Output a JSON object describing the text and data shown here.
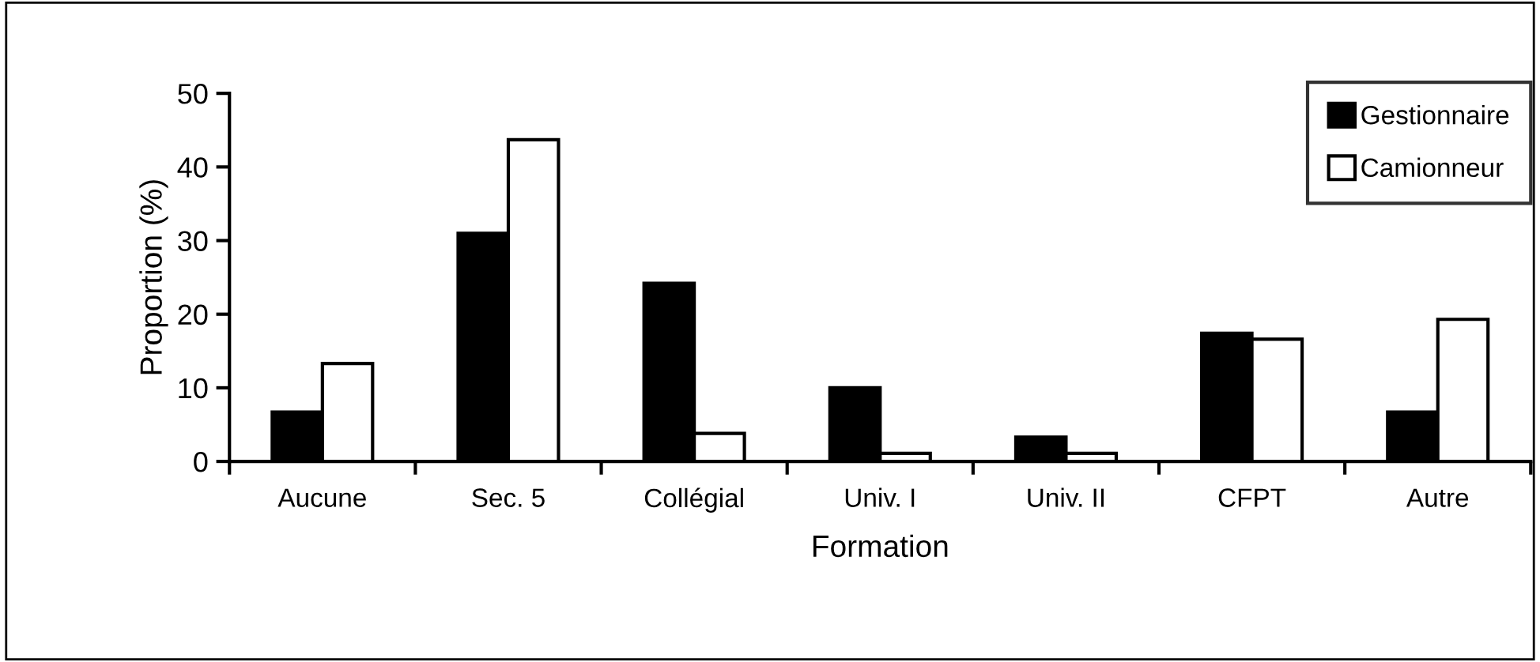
{
  "chart_data": {
    "type": "bar",
    "xlabel": "Formation",
    "ylabel": "Proportion (%)",
    "categories": [
      "Aucune",
      "Sec. 5",
      "Collégial",
      "Univ. I",
      "Univ. II",
      "CFPT",
      "Autre"
    ],
    "series": [
      {
        "name": "Gestionnaire",
        "color": "#000000",
        "values": [
          6.7,
          31,
          24.2,
          10,
          3.3,
          17.4,
          6.7
        ]
      },
      {
        "name": "Camionneur",
        "color": "#ffffff",
        "values": [
          13.3,
          43.7,
          3.8,
          1.1,
          1.1,
          16.6,
          19.3
        ]
      }
    ],
    "ylim": [
      0,
      50
    ],
    "yticks": [
      0,
      10,
      20,
      30,
      40,
      50
    ],
    "grid": false,
    "legend": "top right"
  }
}
